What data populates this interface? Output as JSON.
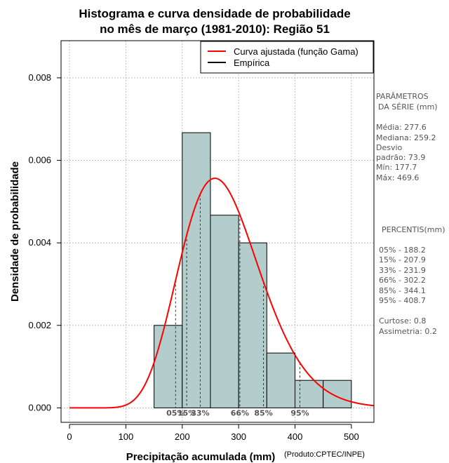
{
  "chart_data": {
    "type": "histogram",
    "title_line1": "Histograma e curva densidade de probabilidade",
    "title_line2": "no mês de março (1981-2010): Região 51",
    "xlabel": "Precipitação acumulada (mm)",
    "ylabel": "Densidade de probabilidade",
    "credit": "(Produto:CPTEC/INPE)",
    "xlim": [
      -15,
      540
    ],
    "ylim": [
      -0.00035,
      0.0089
    ],
    "xticks": [
      0,
      100,
      200,
      300,
      400,
      500
    ],
    "yticks": [
      0.0,
      0.002,
      0.004,
      0.006,
      0.008
    ],
    "ytick_labels": [
      "0.000",
      "0.002",
      "0.004",
      "0.006",
      "0.008"
    ],
    "xtick_labels": [
      "0",
      "100",
      "200",
      "300",
      "400",
      "500"
    ],
    "bins": [
      {
        "from": 150,
        "to": 200,
        "density": 0.002
      },
      {
        "from": 200,
        "to": 250,
        "density": 0.00667
      },
      {
        "from": 250,
        "to": 300,
        "density": 0.00467
      },
      {
        "from": 300,
        "to": 350,
        "density": 0.004
      },
      {
        "from": 350,
        "to": 400,
        "density": 0.00133
      },
      {
        "from": 400,
        "to": 450,
        "density": 0.000667
      },
      {
        "from": 450,
        "to": 500,
        "density": 0.000667
      }
    ],
    "gamma_curve": {
      "name": "Curva ajustada (função Gama)",
      "mean": 277.6,
      "sd": 73.9,
      "min": 0,
      "color": "#ff0000"
    },
    "empirical": {
      "name": "Empírica",
      "color": "#000000"
    },
    "percentile_lines": [
      {
        "label": "05%",
        "value": 188.2
      },
      {
        "label": "15%",
        "value": 207.9
      },
      {
        "label": "33%",
        "value": 231.9
      },
      {
        "label": "66%",
        "value": 302.2
      },
      {
        "label": "85%",
        "value": 344.1
      },
      {
        "label": "95%",
        "value": 408.7
      }
    ],
    "colors": {
      "bar_fill": "#b3cccc",
      "bar_stroke": "#000000",
      "grid": "#b0b0b0",
      "curve": "#ff0000",
      "side_text": "#555555"
    }
  },
  "side_panel": {
    "params_title_1": "PARÂMETROS",
    "params_title_2": "DA SÉRIE (mm)",
    "media": "Média:  277.6",
    "mediana": "Mediana:  259.2",
    "desvio_1": "Desvio",
    "desvio_2": "padrão:  73.9",
    "min": "Mín:  177.7",
    "max": "Máx:  469.6",
    "pct_title": "PERCENTIS(mm)",
    "p05": "05% -  188.2",
    "p15": "15% -  207.9",
    "p33": "33% -  231.9",
    "p66": "66% -  302.2",
    "p85": "85% -  344.1",
    "p95": "95% -  408.7",
    "curtose": "Curtose:  0.8",
    "assimetria": "Assimetria:  0.2"
  }
}
